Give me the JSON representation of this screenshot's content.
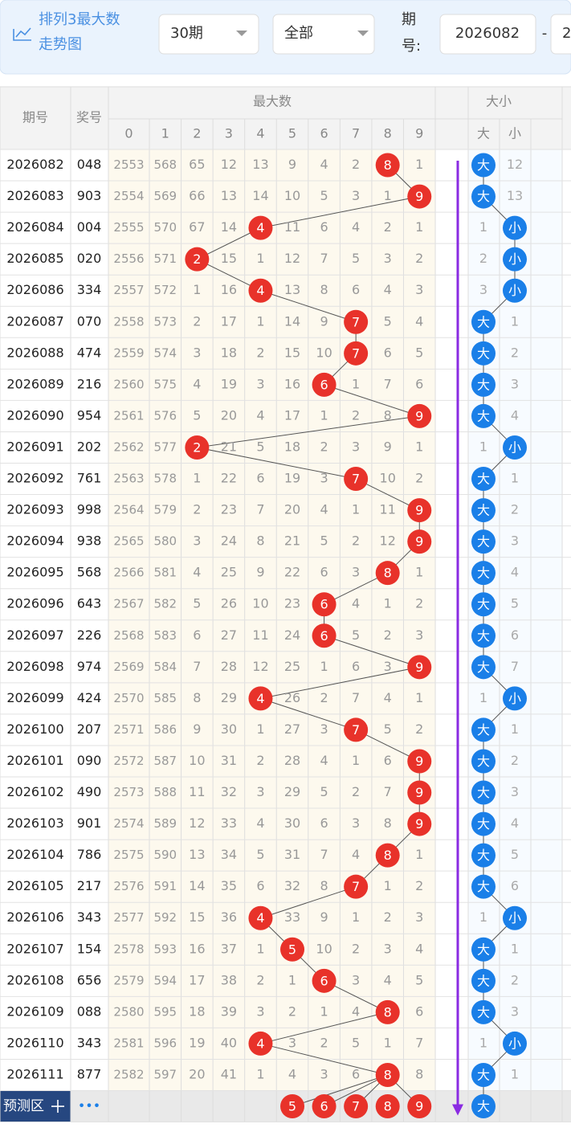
{
  "header": {
    "title_lines": [
      "排列3最大数",
      "走势图"
    ],
    "period_select": "30期",
    "type_select": "全部",
    "issue_label": [
      "期",
      "号:"
    ],
    "issue_from": "2026082",
    "separator": "-",
    "issue_to": "2"
  },
  "table": {
    "col_issue": "期号",
    "col_number": "奖号",
    "group_max": "最大数",
    "digits": [
      0,
      1,
      2,
      3,
      4,
      5,
      6,
      7,
      8,
      9
    ],
    "group_size": "大小",
    "size_cols": [
      "大",
      "小"
    ],
    "rows": [
      {
        "issue": "2026082",
        "number": "048",
        "max": 8,
        "cells": [
          2553,
          568,
          65,
          12,
          13,
          9,
          4,
          2,
          null,
          1
        ],
        "size": "大",
        "miss": 12
      },
      {
        "issue": "2026083",
        "number": "903",
        "max": 9,
        "cells": [
          2554,
          569,
          66,
          13,
          14,
          10,
          5,
          3,
          1,
          null
        ],
        "size": "大",
        "miss": 13
      },
      {
        "issue": "2026084",
        "number": "004",
        "max": 4,
        "cells": [
          2555,
          570,
          67,
          14,
          null,
          11,
          6,
          4,
          2,
          1
        ],
        "size": "小",
        "miss": 1
      },
      {
        "issue": "2026085",
        "number": "020",
        "max": 2,
        "cells": [
          2556,
          571,
          null,
          15,
          1,
          12,
          7,
          5,
          3,
          2
        ],
        "size": "小",
        "miss": 2
      },
      {
        "issue": "2026086",
        "number": "334",
        "max": 4,
        "cells": [
          2557,
          572,
          1,
          16,
          null,
          13,
          8,
          6,
          4,
          3
        ],
        "size": "小",
        "miss": 3
      },
      {
        "issue": "2026087",
        "number": "070",
        "max": 7,
        "cells": [
          2558,
          573,
          2,
          17,
          1,
          14,
          9,
          null,
          5,
          4
        ],
        "size": "大",
        "miss": 1
      },
      {
        "issue": "2026088",
        "number": "474",
        "max": 7,
        "cells": [
          2559,
          574,
          3,
          18,
          2,
          15,
          10,
          null,
          6,
          5
        ],
        "size": "大",
        "miss": 2
      },
      {
        "issue": "2026089",
        "number": "216",
        "max": 6,
        "cells": [
          2560,
          575,
          4,
          19,
          3,
          16,
          null,
          1,
          7,
          6
        ],
        "size": "大",
        "miss": 3
      },
      {
        "issue": "2026090",
        "number": "954",
        "max": 9,
        "cells": [
          2561,
          576,
          5,
          20,
          4,
          17,
          1,
          2,
          8,
          null
        ],
        "size": "大",
        "miss": 4
      },
      {
        "issue": "2026091",
        "number": "202",
        "max": 2,
        "cells": [
          2562,
          577,
          null,
          21,
          5,
          18,
          2,
          3,
          9,
          1
        ],
        "size": "小",
        "miss": 1
      },
      {
        "issue": "2026092",
        "number": "761",
        "max": 7,
        "cells": [
          2563,
          578,
          1,
          22,
          6,
          19,
          3,
          null,
          10,
          2
        ],
        "size": "大",
        "miss": 1
      },
      {
        "issue": "2026093",
        "number": "998",
        "max": 9,
        "cells": [
          2564,
          579,
          2,
          23,
          7,
          20,
          4,
          1,
          11,
          null
        ],
        "size": "大",
        "miss": 2
      },
      {
        "issue": "2026094",
        "number": "938",
        "max": 9,
        "cells": [
          2565,
          580,
          3,
          24,
          8,
          21,
          5,
          2,
          12,
          null
        ],
        "size": "大",
        "miss": 3
      },
      {
        "issue": "2026095",
        "number": "568",
        "max": 8,
        "cells": [
          2566,
          581,
          4,
          25,
          9,
          22,
          6,
          3,
          null,
          1
        ],
        "size": "大",
        "miss": 4
      },
      {
        "issue": "2026096",
        "number": "643",
        "max": 6,
        "cells": [
          2567,
          582,
          5,
          26,
          10,
          23,
          null,
          4,
          1,
          2
        ],
        "size": "大",
        "miss": 5
      },
      {
        "issue": "2026097",
        "number": "226",
        "max": 6,
        "cells": [
          2568,
          583,
          6,
          27,
          11,
          24,
          null,
          5,
          2,
          3
        ],
        "size": "大",
        "miss": 6
      },
      {
        "issue": "2026098",
        "number": "974",
        "max": 9,
        "cells": [
          2569,
          584,
          7,
          28,
          12,
          25,
          1,
          6,
          3,
          null
        ],
        "size": "大",
        "miss": 7
      },
      {
        "issue": "2026099",
        "number": "424",
        "max": 4,
        "cells": [
          2570,
          585,
          8,
          29,
          null,
          26,
          2,
          7,
          4,
          1
        ],
        "size": "小",
        "miss": 1
      },
      {
        "issue": "2026100",
        "number": "207",
        "max": 7,
        "cells": [
          2571,
          586,
          9,
          30,
          1,
          27,
          3,
          null,
          5,
          2
        ],
        "size": "大",
        "miss": 1
      },
      {
        "issue": "2026101",
        "number": "090",
        "max": 9,
        "cells": [
          2572,
          587,
          10,
          31,
          2,
          28,
          4,
          1,
          6,
          null
        ],
        "size": "大",
        "miss": 2
      },
      {
        "issue": "2026102",
        "number": "490",
        "max": 9,
        "cells": [
          2573,
          588,
          11,
          32,
          3,
          29,
          5,
          2,
          7,
          null
        ],
        "size": "大",
        "miss": 3
      },
      {
        "issue": "2026103",
        "number": "901",
        "max": 9,
        "cells": [
          2574,
          589,
          12,
          33,
          4,
          30,
          6,
          3,
          8,
          null
        ],
        "size": "大",
        "miss": 4
      },
      {
        "issue": "2026104",
        "number": "786",
        "max": 8,
        "cells": [
          2575,
          590,
          13,
          34,
          5,
          31,
          7,
          4,
          null,
          1
        ],
        "size": "大",
        "miss": 5
      },
      {
        "issue": "2026105",
        "number": "217",
        "max": 7,
        "cells": [
          2576,
          591,
          14,
          35,
          6,
          32,
          8,
          null,
          1,
          2
        ],
        "size": "大",
        "miss": 6
      },
      {
        "issue": "2026106",
        "number": "343",
        "max": 4,
        "cells": [
          2577,
          592,
          15,
          36,
          null,
          33,
          9,
          1,
          2,
          3
        ],
        "size": "小",
        "miss": 1
      },
      {
        "issue": "2026107",
        "number": "154",
        "max": 5,
        "cells": [
          2578,
          593,
          16,
          37,
          1,
          null,
          10,
          2,
          3,
          4
        ],
        "size": "大",
        "miss": 1
      },
      {
        "issue": "2026108",
        "number": "656",
        "max": 6,
        "cells": [
          2579,
          594,
          17,
          38,
          2,
          1,
          null,
          3,
          4,
          5
        ],
        "size": "大",
        "miss": 2
      },
      {
        "issue": "2026109",
        "number": "088",
        "max": 8,
        "cells": [
          2580,
          595,
          18,
          39,
          3,
          2,
          1,
          4,
          null,
          6
        ],
        "size": "大",
        "miss": 3
      },
      {
        "issue": "2026110",
        "number": "343",
        "max": 4,
        "cells": [
          2581,
          596,
          19,
          40,
          null,
          3,
          2,
          5,
          1,
          7
        ],
        "size": "小",
        "miss": 1
      },
      {
        "issue": "2026111",
        "number": "877",
        "max": 8,
        "cells": [
          2582,
          597,
          20,
          41,
          1,
          4,
          3,
          6,
          null,
          8
        ],
        "size": "大",
        "miss": 1
      }
    ],
    "predict": {
      "label": "预测区",
      "more": "•••",
      "balls": [
        5,
        6,
        7,
        8,
        9
      ],
      "size": "大"
    }
  }
}
